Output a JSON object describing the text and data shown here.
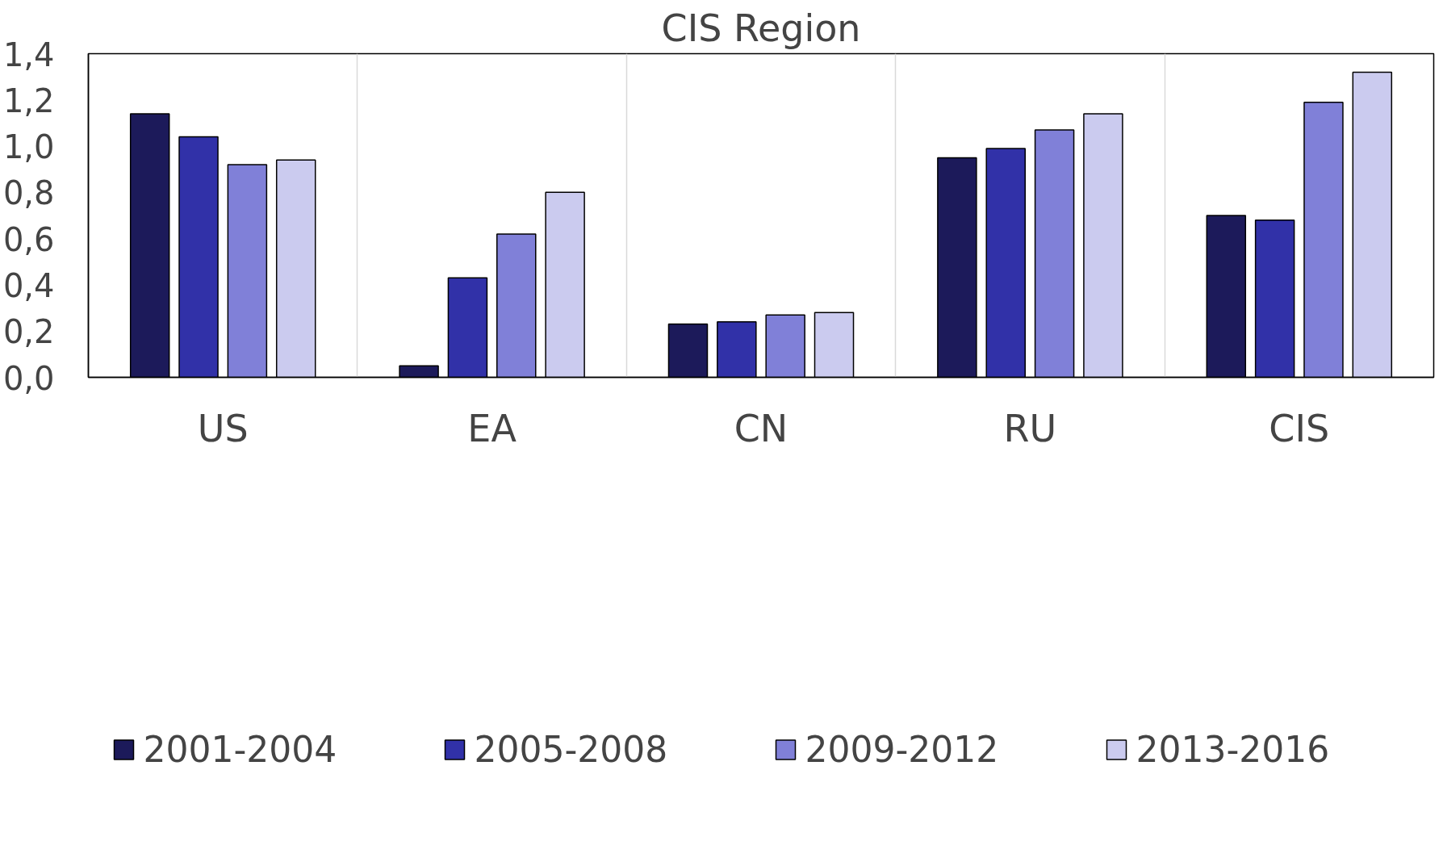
{
  "chart_data": {
    "type": "bar",
    "title": "CIS Region",
    "categories": [
      "US",
      "EA",
      "CN",
      "RU",
      "CIS"
    ],
    "series": [
      {
        "name": "2001-2004",
        "color": "#1c1a5a",
        "values": [
          1.14,
          0.05,
          0.23,
          0.95,
          0.7
        ]
      },
      {
        "name": "2005-2008",
        "color": "#3131a8",
        "values": [
          1.04,
          0.43,
          0.24,
          0.99,
          0.68
        ]
      },
      {
        "name": "2009-2012",
        "color": "#8080d8",
        "values": [
          0.92,
          0.62,
          0.27,
          1.07,
          1.19
        ]
      },
      {
        "name": "2013-2016",
        "color": "#cbcbef",
        "values": [
          0.94,
          0.8,
          0.28,
          1.14,
          1.32
        ]
      }
    ],
    "ylim": [
      0,
      1.4
    ],
    "yticks": [
      {
        "value": 0,
        "label": "0,0"
      },
      {
        "value": 0.2,
        "label": "0,2"
      },
      {
        "value": 0.4,
        "label": "0,4"
      },
      {
        "value": 0.6,
        "label": "0,6"
      },
      {
        "value": 0.8,
        "label": "0,8"
      },
      {
        "value": 1.0,
        "label": "1,0"
      },
      {
        "value": 1.2,
        "label": "1,2"
      },
      {
        "value": 1.4,
        "label": "1,4"
      }
    ],
    "grid": "x",
    "legend": "bottom"
  }
}
